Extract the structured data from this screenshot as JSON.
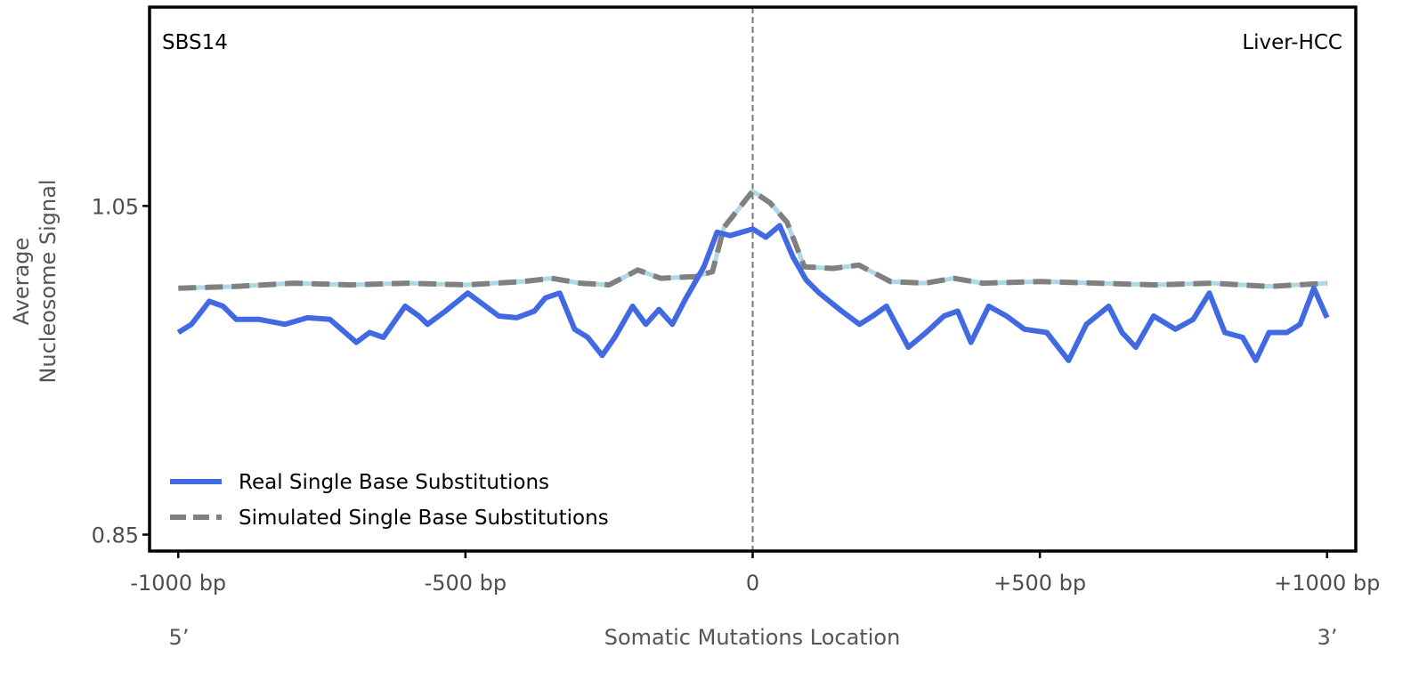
{
  "chart_data": {
    "type": "line",
    "title_left": "SBS14",
    "title_right": "Liver-HCC",
    "xlabel": "Somatic Mutations Location",
    "ylabel": [
      "Average",
      "Nucleosome Signal"
    ],
    "end_labels": {
      "left": "5’",
      "right": "3’"
    },
    "xlim": [
      -1050,
      1050
    ],
    "ylim": [
      0.84,
      1.171
    ],
    "x_ticks": [
      {
        "value": -1000,
        "label": "-1000 bp"
      },
      {
        "value": -500,
        "label": "-500 bp"
      },
      {
        "value": 0,
        "label": "0"
      },
      {
        "value": 500,
        "label": "+500 bp"
      },
      {
        "value": 1000,
        "label": "+1000 bp"
      }
    ],
    "y_ticks": [
      {
        "value": 1.05,
        "label": "1.05"
      },
      {
        "value": 0.85,
        "label": "0.85"
      }
    ],
    "center_line": 0,
    "legend_position": "lower-left",
    "series": [
      {
        "name": "Real Single Base Substitutions",
        "color": "#4169e1",
        "style": "solid",
        "x": [
          -1000,
          -977,
          -946,
          -922,
          -899,
          -860,
          -814,
          -775,
          -736,
          -690,
          -667,
          -643,
          -605,
          -581,
          -566,
          -535,
          -496,
          -465,
          -442,
          -411,
          -380,
          -361,
          -336,
          -310,
          -287,
          -262,
          -240,
          -209,
          -186,
          -163,
          -140,
          -116,
          -85,
          -62,
          -39,
          0,
          23,
          47,
          70,
          93,
          116,
          155,
          186,
          209,
          233,
          271,
          302,
          333,
          357,
          380,
          411,
          442,
          473,
          512,
          550,
          581,
          620,
          643,
          667,
          698,
          736,
          767,
          795,
          822,
          853,
          876,
          899,
          930,
          953,
          977,
          1000
        ],
        "y": [
          0.973,
          0.978,
          0.992,
          0.989,
          0.981,
          0.981,
          0.978,
          0.982,
          0.981,
          0.967,
          0.973,
          0.97,
          0.989,
          0.983,
          0.978,
          0.986,
          0.997,
          0.989,
          0.983,
          0.982,
          0.986,
          0.994,
          0.997,
          0.975,
          0.97,
          0.959,
          0.97,
          0.989,
          0.978,
          0.987,
          0.978,
          0.994,
          1.013,
          1.034,
          1.032,
          1.036,
          1.031,
          1.038,
          1.019,
          1.005,
          0.997,
          0.986,
          0.978,
          0.983,
          0.989,
          0.964,
          0.973,
          0.983,
          0.986,
          0.967,
          0.989,
          0.983,
          0.975,
          0.973,
          0.956,
          0.978,
          0.989,
          0.973,
          0.964,
          0.983,
          0.975,
          0.981,
          0.997,
          0.973,
          0.97,
          0.956,
          0.973,
          0.973,
          0.978,
          1.0,
          0.982
        ]
      },
      {
        "name": "Simulated Single Base Substitutions",
        "color": "#808080",
        "underlay_color": "#add8e6",
        "style": "dashed",
        "x": [
          -1000,
          -900,
          -800,
          -700,
          -600,
          -500,
          -400,
          -350,
          -300,
          -250,
          -200,
          -160,
          -100,
          -70,
          -50,
          -25,
          0,
          30,
          60,
          90,
          140,
          185,
          240,
          300,
          350,
          400,
          500,
          600,
          700,
          800,
          900,
          1000
        ],
        "y": [
          1.0,
          1.001,
          1.003,
          1.002,
          1.003,
          1.002,
          1.004,
          1.006,
          1.003,
          1.002,
          1.011,
          1.006,
          1.007,
          1.01,
          1.037,
          1.048,
          1.059,
          1.052,
          1.04,
          1.013,
          1.012,
          1.014,
          1.004,
          1.003,
          1.006,
          1.003,
          1.004,
          1.003,
          1.002,
          1.003,
          1.001,
          1.003
        ]
      }
    ]
  }
}
